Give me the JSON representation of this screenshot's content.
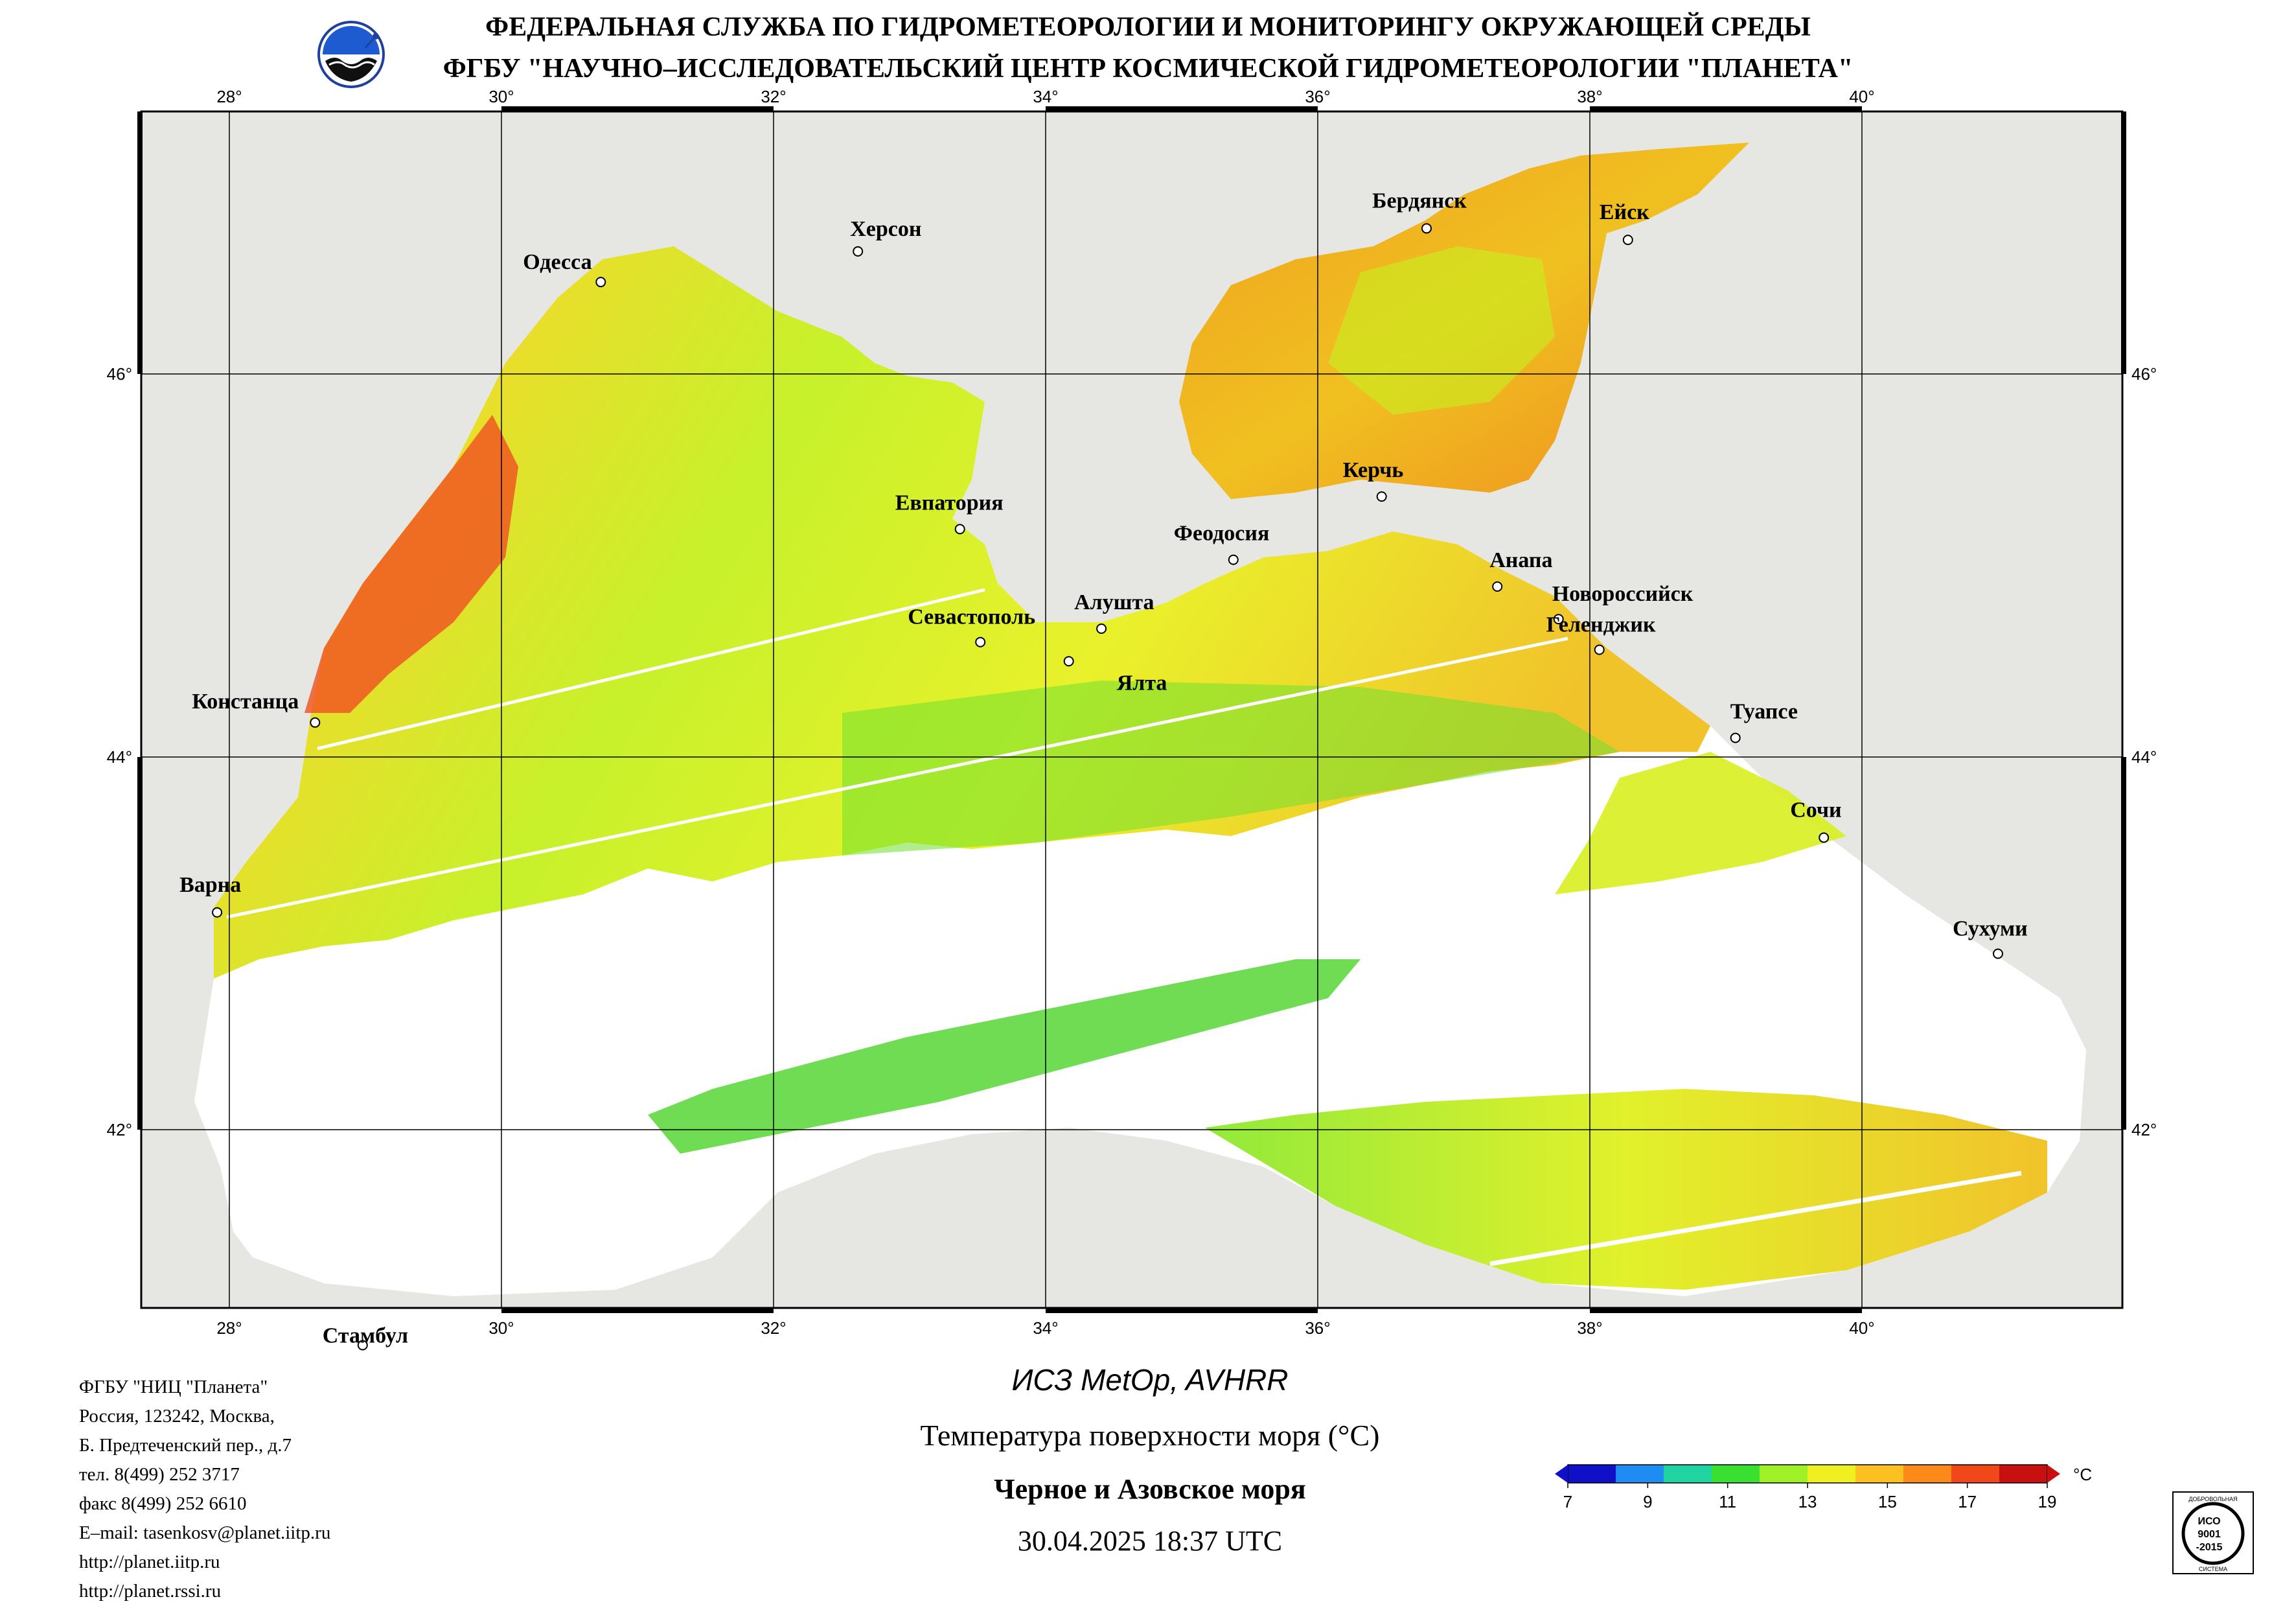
{
  "header": {
    "line1": "ФЕДЕРАЛЬНАЯ СЛУЖБА ПО ГИДРОМЕТЕОРОЛОГИИ И МОНИТОРИНГУ ОКРУЖАЮЩЕЙ СРЕДЫ",
    "line2": "ФГБУ \"НАУЧНО–ИССЛЕДОВАТЕЛЬСКИЙ ЦЕНТР КОСМИЧЕСКОЙ ГИДРОМЕТЕОРОЛОГИИ \"ПЛАНЕТА\""
  },
  "map": {
    "lon_labels": [
      "28°",
      "30°",
      "32°",
      "34°",
      "36°",
      "38°",
      "40°"
    ],
    "lat_labels": [
      "46°",
      "44°",
      "42°"
    ],
    "cities": [
      {
        "name": "Одесса",
        "lon": 30.73,
        "lat": 46.48
      },
      {
        "name": "Херсон",
        "lon": 32.62,
        "lat": 46.64
      },
      {
        "name": "Бердянск",
        "lon": 36.8,
        "lat": 46.76
      },
      {
        "name": "Ейск",
        "lon": 38.28,
        "lat": 46.7
      },
      {
        "name": "Евпатория",
        "lon": 33.37,
        "lat": 45.19
      },
      {
        "name": "Керчь",
        "lon": 36.47,
        "lat": 45.36
      },
      {
        "name": "Феодосия",
        "lon": 35.38,
        "lat": 45.03
      },
      {
        "name": "Анапа",
        "lon": 37.32,
        "lat": 44.89
      },
      {
        "name": "Новороссийск",
        "lon": 37.77,
        "lat": 44.72
      },
      {
        "name": "Геленджик",
        "lon": 38.07,
        "lat": 44.56
      },
      {
        "name": "Севастополь",
        "lon": 33.52,
        "lat": 44.6
      },
      {
        "name": "Алушта",
        "lon": 34.41,
        "lat": 44.67
      },
      {
        "name": "Ялта",
        "lon": 34.17,
        "lat": 44.5
      },
      {
        "name": "Констанца",
        "lon": 28.63,
        "lat": 44.18
      },
      {
        "name": "Туапсе",
        "lon": 39.07,
        "lat": 44.1
      },
      {
        "name": "Сочи",
        "lon": 39.72,
        "lat": 43.59
      },
      {
        "name": "Варна",
        "lon": 27.91,
        "lat": 43.21
      },
      {
        "name": "Сухуми",
        "lon": 41.0,
        "lat": 43.0
      },
      {
        "name": "Стамбул",
        "lon": 28.98,
        "lat": 41.01
      }
    ]
  },
  "footer": {
    "org": "ФГБУ \"НИЦ \"Планета\"",
    "addr1": "Россия, 123242, Москва,",
    "addr2": "Б. Предтеченский пер., д.7",
    "tel": "тел. 8(499) 252 3717",
    "fax": "факс 8(499) 252 6610",
    "email": "E–mail: tasenkosv@planet.iitp.ru",
    "url1": "http://planet.iitp.ru",
    "url2": "http://planet.rssi.ru",
    "satellite": "ИСЗ MetOp, AVHRR",
    "parameter": "Температура поверхности моря (°C)",
    "region": "Черное и Азовское моря",
    "datetime": "30.04.2025 18:37 UTC"
  },
  "colorbar": {
    "unit": "°C",
    "ticks": [
      "7",
      "9",
      "11",
      "13",
      "15",
      "17",
      "19"
    ],
    "min": 7,
    "max": 19,
    "colors": [
      "#1010c8",
      "#1e8cf0",
      "#1fd4a0",
      "#3ae030",
      "#a0f028",
      "#f0f020",
      "#fcc020",
      "#fc8a18",
      "#f04818",
      "#c81010"
    ]
  },
  "iso_badge": {
    "top": "ДОБРОВОЛЬНАЯ",
    "line1": "ИСО",
    "line2": "9001",
    "line3": "-2015",
    "bottom": "СИСТЕМА"
  }
}
